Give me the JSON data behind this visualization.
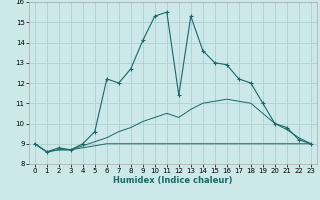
{
  "xlabel": "Humidex (Indice chaleur)",
  "bg_color": "#cce8e8",
  "grid_color": "#aacccc",
  "line_color": "#1a6868",
  "xlim": [
    -0.5,
    23.5
  ],
  "ylim": [
    8.0,
    16.0
  ],
  "yticks": [
    8,
    9,
    10,
    11,
    12,
    13,
    14,
    15,
    16
  ],
  "xticks": [
    0,
    1,
    2,
    3,
    4,
    5,
    6,
    7,
    8,
    9,
    10,
    11,
    12,
    13,
    14,
    15,
    16,
    17,
    18,
    19,
    20,
    21,
    22,
    23
  ],
  "line1_x": [
    0,
    1,
    2,
    3,
    4,
    5,
    6,
    7,
    8,
    9,
    10,
    11,
    12,
    13,
    14,
    15,
    16,
    17,
    18,
    19,
    20,
    21,
    22,
    23
  ],
  "line1_y": [
    9.0,
    8.6,
    8.8,
    8.7,
    9.0,
    9.6,
    12.2,
    12.0,
    12.7,
    14.1,
    15.3,
    15.5,
    11.4,
    15.3,
    13.6,
    13.0,
    12.9,
    12.2,
    12.0,
    11.0,
    10.0,
    9.8,
    9.2,
    9.0
  ],
  "line2_x": [
    0,
    1,
    2,
    3,
    4,
    5,
    6,
    7,
    8,
    9,
    10,
    11,
    12,
    13,
    14,
    15,
    16,
    17,
    18,
    19,
    20,
    21,
    22,
    23
  ],
  "line2_y": [
    9.0,
    8.6,
    8.7,
    8.7,
    8.8,
    8.9,
    9.0,
    9.0,
    9.0,
    9.0,
    9.0,
    9.0,
    9.0,
    9.0,
    9.0,
    9.0,
    9.0,
    9.0,
    9.0,
    9.0,
    9.0,
    9.0,
    9.0,
    9.0
  ],
  "line3_x": [
    0,
    1,
    2,
    3,
    4,
    5,
    6,
    7,
    8,
    9,
    10,
    11,
    12,
    13,
    14,
    15,
    16,
    17,
    18,
    19,
    20,
    21,
    22,
    23
  ],
  "line3_y": [
    9.0,
    8.6,
    8.7,
    8.7,
    8.9,
    9.1,
    9.3,
    9.6,
    9.8,
    10.1,
    10.3,
    10.5,
    10.3,
    10.7,
    11.0,
    11.1,
    11.2,
    11.1,
    11.0,
    10.5,
    10.0,
    9.7,
    9.3,
    9.0
  ]
}
